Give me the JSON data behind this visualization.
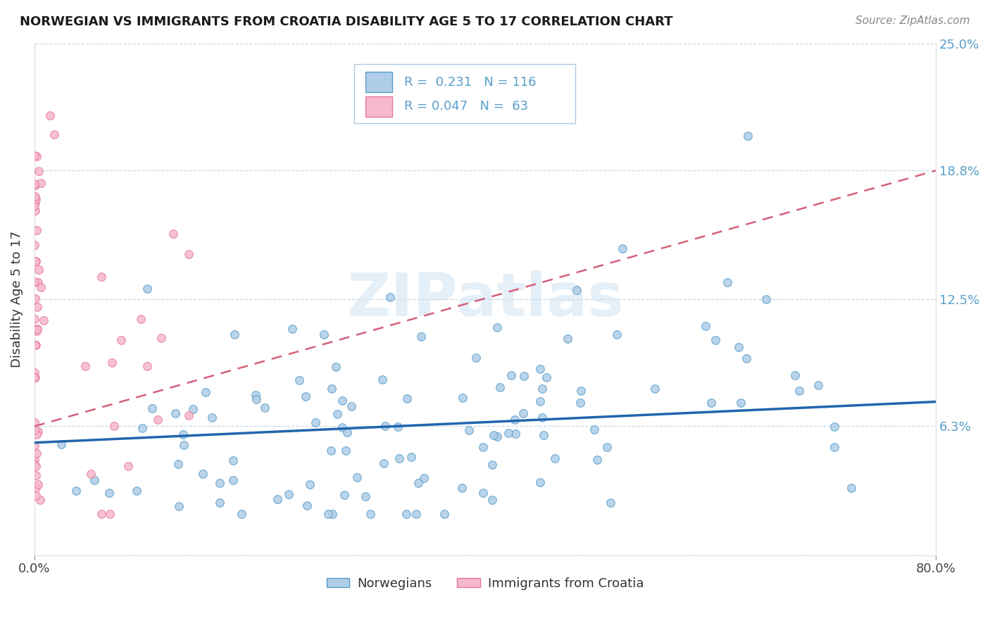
{
  "title": "NORWEGIAN VS IMMIGRANTS FROM CROATIA DISABILITY AGE 5 TO 17 CORRELATION CHART",
  "source": "Source: ZipAtlas.com",
  "ylabel": "Disability Age 5 to 17",
  "norwegians_R": "0.231",
  "norwegians_N": "116",
  "immigrants_R": "0.047",
  "immigrants_N": "63",
  "legend_labels": [
    "Norwegians",
    "Immigrants from Croatia"
  ],
  "blue_scatter_face": "#aecde8",
  "blue_scatter_edge": "#5a9ec9",
  "pink_scatter_face": "#f5b8cc",
  "pink_scatter_edge": "#e87a9a",
  "blue_line_color": "#2166ac",
  "pink_line_color": "#d4607a",
  "watermark": "ZIPatlas",
  "xlim": [
    0.0,
    0.8
  ],
  "ylim": [
    0.0,
    0.25
  ],
  "yticks": [
    0.0,
    0.063,
    0.125,
    0.188,
    0.25
  ],
  "ytick_labels_right": [
    "",
    "6.3%",
    "12.5%",
    "18.8%",
    "25.0%"
  ],
  "xticks": [
    0.0,
    0.8
  ],
  "xtick_labels": [
    "0.0%",
    "80.0%"
  ],
  "tick_color": "#5a9ec9",
  "nor_line_x0": 0.0,
  "nor_line_x1": 0.8,
  "nor_line_y0": 0.055,
  "nor_line_y1": 0.075,
  "imm_line_x0": 0.0,
  "imm_line_x1": 0.8,
  "imm_line_y0": 0.063,
  "imm_line_y1": 0.188,
  "grid_color": "#c0d4e8",
  "grid_linestyle": "--",
  "background_color": "#ffffff"
}
